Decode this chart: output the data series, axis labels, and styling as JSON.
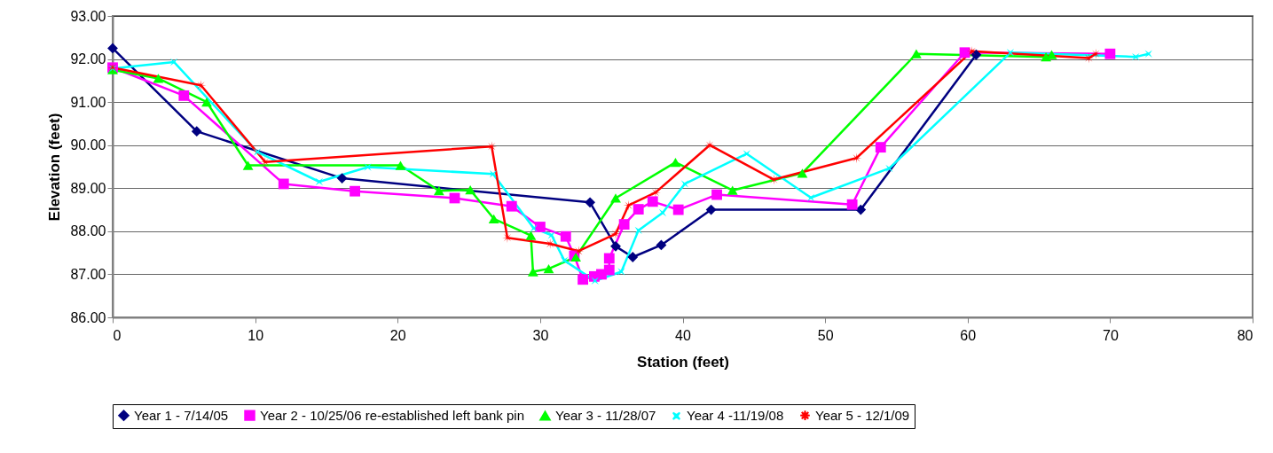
{
  "chart_data": {
    "type": "line",
    "xlabel": "Station (feet)",
    "ylabel": "Elevation (feet)",
    "xlim": [
      0,
      80
    ],
    "xticks": [
      0,
      10,
      20,
      30,
      40,
      50,
      60,
      70,
      80
    ],
    "ylim": [
      86,
      93
    ],
    "yticks": [
      {
        "value": 86,
        "label": "86.00"
      },
      {
        "value": 87,
        "label": "87.00"
      },
      {
        "value": 88,
        "label": "88.00"
      },
      {
        "value": 89,
        "label": "89.00"
      },
      {
        "value": 90,
        "label": "90.00"
      },
      {
        "value": 91,
        "label": "91.00"
      },
      {
        "value": 92,
        "label": "92.00"
      },
      {
        "value": 93,
        "label": "93.00"
      }
    ],
    "grid": "y",
    "legend": "bottom",
    "line_style": "solid",
    "series": [
      {
        "name": "Year 1 - 7/14/05",
        "color": "#000080",
        "marker": "diamond",
        "x": [
          0,
          5.9,
          16.1,
          33.5,
          35.3,
          36.5,
          38.5,
          42,
          52.5,
          60.6
        ],
        "values": [
          92.25,
          90.32,
          89.23,
          88.67,
          87.65,
          87.4,
          87.68,
          88.5,
          88.5,
          92.1
        ]
      },
      {
        "name": "Year 2 - 10/25/06 re-established left bank pin",
        "color": "#ff00ff",
        "marker": "square",
        "x": [
          0,
          5,
          12,
          17,
          24,
          28,
          30,
          31.8,
          32.4,
          33,
          33.8,
          34.3,
          34.85,
          34.85,
          35.9,
          36.9,
          37.9,
          39.7,
          42.4,
          51.9,
          53.9,
          59.8,
          70
        ],
        "values": [
          91.8,
          91.15,
          89.1,
          88.93,
          88.77,
          88.58,
          88.1,
          87.88,
          87.43,
          86.88,
          86.95,
          87,
          87.1,
          87.37,
          88.16,
          88.51,
          88.69,
          88.5,
          88.85,
          88.62,
          89.95,
          92.15,
          92.12
        ]
      },
      {
        "name": "Year 3 - 11/28/07",
        "color": "#00ff00",
        "marker": "triangle",
        "x": [
          0,
          3.2,
          6.6,
          9.5,
          20.2,
          22.9,
          25.1,
          26.75,
          29.35,
          29.5,
          30.6,
          32.5,
          35.3,
          39.5,
          43.5,
          48.4,
          56.4,
          65.5,
          65.9
        ],
        "values": [
          91.75,
          91.55,
          91,
          89.53,
          89.53,
          88.94,
          88.96,
          88.29,
          87.9,
          87.06,
          87.13,
          87.4,
          88.77,
          89.6,
          88.95,
          89.35,
          92.12,
          92.05,
          92.1
        ]
      },
      {
        "name": "Year 4 -11/19/08",
        "color": "#00ffff",
        "marker": "cross",
        "x": [
          0,
          4.3,
          10.15,
          14.5,
          17.9,
          26.7,
          29.55,
          30.8,
          31.7,
          33.85,
          35.7,
          36.9,
          38.6,
          40.15,
          44.5,
          49,
          54.5,
          63,
          71.8,
          72.7
        ],
        "values": [
          91.78,
          91.93,
          89.84,
          89.15,
          89.49,
          89.33,
          88.07,
          87.91,
          87.32,
          86.85,
          87.06,
          88.02,
          88.43,
          89.1,
          89.8,
          88.78,
          89.46,
          92.15,
          92.05,
          92.12
        ]
      },
      {
        "name": "Year 5 - 12/1/09",
        "color": "#ff0000",
        "marker": "star",
        "x": [
          0,
          6.2,
          10.7,
          26.6,
          27.7,
          30.7,
          32.7,
          35.3,
          36.2,
          38.1,
          41.9,
          46.4,
          52.2,
          60.3,
          68.5,
          69
        ],
        "values": [
          91.8,
          91.39,
          89.61,
          89.97,
          87.85,
          87.71,
          87.54,
          87.94,
          88.6,
          88.9,
          90,
          89.2,
          89.7,
          92.18,
          92.02,
          92.12
        ]
      }
    ]
  }
}
